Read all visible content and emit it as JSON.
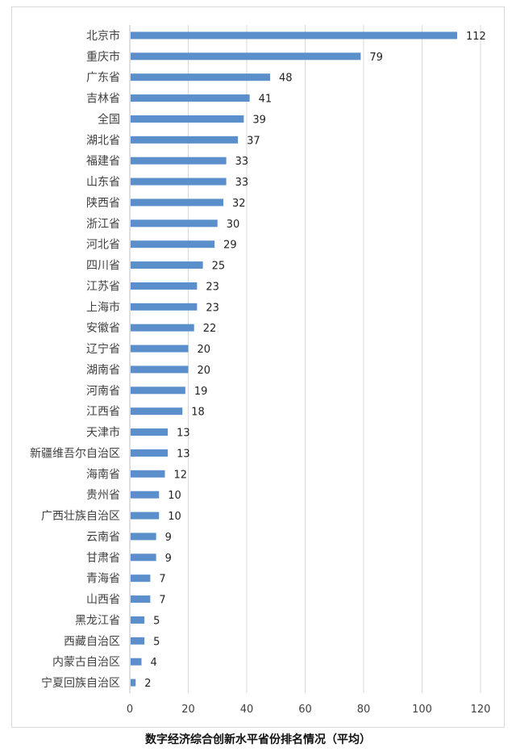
{
  "caption": "数字经济综合创新水平省份排名情况（平均）",
  "chart_data": {
    "type": "bar",
    "orientation": "horizontal",
    "title": "",
    "xlabel": "",
    "ylabel": "",
    "xlim": [
      0,
      120
    ],
    "xticks": [
      0,
      20,
      40,
      60,
      80,
      100,
      120
    ],
    "grid": "vertical",
    "bar_color": "#5b8fcb",
    "gridline_color": "#d9d9d9",
    "categories": [
      "北京市",
      "重庆市",
      "广东省",
      "吉林省",
      "全国",
      "湖北省",
      "福建省",
      "山东省",
      "陕西省",
      "浙江省",
      "河北省",
      "四川省",
      "江苏省",
      "上海市",
      "安徽省",
      "辽宁省",
      "湖南省",
      "河南省",
      "江西省",
      "天津市",
      "新疆维吾尔自治区",
      "海南省",
      "贵州省",
      "广西壮族自治区",
      "云南省",
      "甘肃省",
      "青海省",
      "山西省",
      "黑龙江省",
      "西藏自治区",
      "内蒙古自治区",
      "宁夏回族自治区"
    ],
    "values": [
      112,
      79,
      48,
      41,
      39,
      37,
      33,
      33,
      32,
      30,
      29,
      25,
      23,
      23,
      22,
      20,
      20,
      19,
      18,
      13,
      13,
      12,
      10,
      10,
      9,
      9,
      7,
      7,
      5,
      5,
      4,
      2
    ]
  }
}
